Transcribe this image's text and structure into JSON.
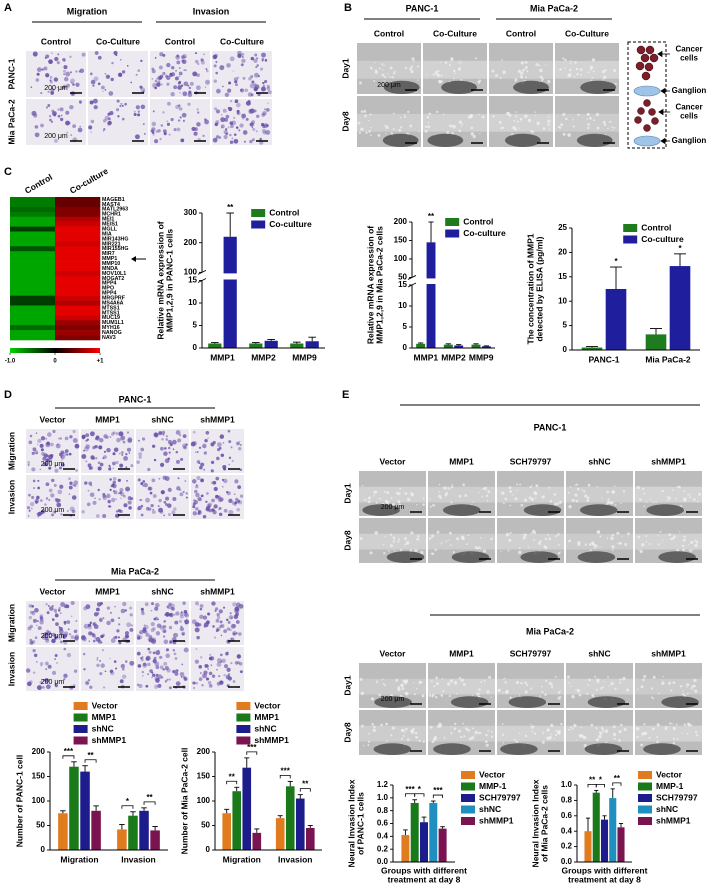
{
  "panels": {
    "A": {
      "label": "A",
      "groups": [
        "Migration",
        "Invasion"
      ],
      "columns": [
        "Control",
        "Co-Culture",
        "Control",
        "Co-Culture"
      ],
      "rows": [
        "PANC-1",
        "Mia PaCa-2"
      ],
      "scale_bars": [
        "200 μm",
        "200 μm"
      ]
    },
    "B": {
      "label": "B",
      "groups": [
        "PANC-1",
        "Mia PaCa-2"
      ],
      "columns": [
        "Control",
        "Co-Culture",
        "Control",
        "Co-Culture"
      ],
      "rows": [
        "Day1",
        "Day8"
      ],
      "scale_bars": [
        "200 μm"
      ],
      "schematic": [
        "Cancer cells",
        "Ganglion",
        "Cancer cells",
        "Ganglion"
      ]
    },
    "C": {
      "label": "C"
    },
    "D": {
      "label": "D",
      "blocks": [
        {
          "title": "PANC-1",
          "columns": [
            "Vector",
            "MMP1",
            "shNC",
            "shMMP1"
          ],
          "rows": [
            "Migration",
            "Invasion"
          ],
          "scale_bars": [
            "200 μm",
            "200 μm"
          ]
        },
        {
          "title": "Mia PaCa-2",
          "columns": [
            "Vector",
            "MMP1",
            "shNC",
            "shMMP1"
          ],
          "rows": [
            "Migration",
            "Invasion"
          ],
          "scale_bars": [
            "200 μm",
            "200 μm"
          ]
        }
      ]
    },
    "E": {
      "label": "E",
      "blocks": [
        {
          "title": "PANC-1",
          "columns": [
            "Vector",
            "MMP1",
            "SCH79797",
            "shNC",
            "shMMP1"
          ],
          "rows": [
            "Day1",
            "Day8"
          ],
          "scale_bars": [
            "200 μm"
          ]
        },
        {
          "title": "Mia PaCa-2",
          "columns": [
            "Vector",
            "MMP1",
            "SCH79797",
            "shNC",
            "shMMP1"
          ],
          "rows": [
            "Day1",
            "Day8"
          ],
          "scale_bars": [
            "200 μm"
          ]
        }
      ]
    }
  },
  "chart_data": [
    {
      "type": "heatmap",
      "columns": [
        "Control",
        "Co-culture"
      ],
      "rows": [
        "MAGEB1",
        "MAST4",
        "MATL2963",
        "MCHR1",
        "MEI1",
        "MEIS1",
        "MGLL",
        "MIA",
        "MIR143HG",
        "MIR221",
        "MIR155HG",
        "MIR7",
        "MMP1",
        "MMP10",
        "MNDA",
        "MOV10L1",
        "MOGAT2",
        "MPP4",
        "MPO",
        "MPP4",
        "MRGPRF",
        "MS4A6A",
        "MTSS1",
        "MTSS1",
        "MUC19",
        "MUM1L1",
        "MYH16",
        "NANOG",
        "NAV3"
      ],
      "values": [
        [
          -0.6,
          0.4
        ],
        [
          -0.6,
          0.4
        ],
        [
          -0.5,
          0.5
        ],
        [
          -0.6,
          0.5
        ],
        [
          -0.8,
          0.7
        ],
        [
          -0.8,
          0.8
        ],
        [
          -0.3,
          0.9
        ],
        [
          -0.8,
          0.9
        ],
        [
          -0.8,
          0.9
        ],
        [
          -0.8,
          0.8
        ],
        [
          -0.4,
          0.9
        ],
        [
          -0.8,
          0.9
        ],
        [
          -0.8,
          0.9
        ],
        [
          -0.8,
          0.9
        ],
        [
          -0.8,
          0.9
        ],
        [
          -0.8,
          0.8
        ],
        [
          -0.8,
          0.9
        ],
        [
          -0.8,
          0.9
        ],
        [
          -0.8,
          0.9
        ],
        [
          -0.8,
          0.9
        ],
        [
          -0.3,
          0.8
        ],
        [
          -0.3,
          0.7
        ],
        [
          -0.8,
          0.9
        ],
        [
          -0.8,
          0.9
        ],
        [
          -0.8,
          0.8
        ],
        [
          -0.8,
          0.6
        ],
        [
          -0.5,
          0.5
        ],
        [
          -0.8,
          0.6
        ],
        [
          -0.8,
          0.5
        ]
      ],
      "clim": [
        -1,
        1
      ],
      "cticks": [
        {
          "value": -1,
          "label": "-1.0"
        },
        0,
        {
          "value": 1,
          "label": "+1"
        }
      ],
      "colors": [
        "#00d000",
        "#000000",
        "#ff0000"
      ]
    },
    {
      "type": "bar",
      "ylabel": "Relative mRNA expression of MMP1,2,9 in PANC-1 cells",
      "categories": [
        "MMP1",
        "MMP2",
        "MMP9"
      ],
      "series": [
        {
          "name": "Control",
          "color": "#1e7b1e",
          "values": [
            1,
            1,
            1
          ],
          "errors": [
            0.2,
            0.2,
            0.3
          ]
        },
        {
          "name": "Co-culture",
          "color": "#1f1f9e",
          "values": [
            220,
            1.6,
            1.5
          ],
          "errors": [
            80,
            0.3,
            0.9
          ],
          "significance": [
            "**",
            null,
            null
          ]
        }
      ],
      "ylim": [
        0,
        300
      ],
      "axis_break": [
        15,
        100
      ],
      "yticks": [
        0,
        5,
        10,
        15,
        100,
        200,
        300
      ],
      "legend": "inside-top"
    },
    {
      "type": "bar",
      "ylabel": "Relative mRNA expression of MMP1,2,9 in Mia PaCa-2 cells",
      "categories": [
        "MMP1",
        "MMP2",
        "MMP9"
      ],
      "series": [
        {
          "name": "Control",
          "color": "#1e7b1e",
          "values": [
            1,
            0.8,
            0.8
          ],
          "errors": [
            0.2,
            0.2,
            0.2
          ]
        },
        {
          "name": "Co-culture",
          "color": "#1f1f9e",
          "values": [
            145,
            0.6,
            0.4
          ],
          "errors": [
            55,
            0.2,
            0.1
          ],
          "significance": [
            "**",
            null,
            null
          ]
        }
      ],
      "ylim": [
        0,
        200
      ],
      "axis_break": [
        15,
        50
      ],
      "yticks": [
        0,
        5,
        10,
        15,
        50,
        100,
        150,
        200
      ],
      "legend": "inside-top"
    },
    {
      "type": "bar",
      "ylabel": "The concentration of MMP1 detected by ELISA (pg/ml)",
      "categories": [
        "PANC-1",
        "Mia PaCa-2"
      ],
      "series": [
        {
          "name": "Control",
          "color": "#1e7b1e",
          "values": [
            0.5,
            3.2
          ],
          "errors": [
            0.2,
            1.2
          ]
        },
        {
          "name": "Co-culture",
          "color": "#1f1f9e",
          "values": [
            12.5,
            17.2
          ],
          "errors": [
            4.5,
            2.5
          ],
          "significance": [
            "*",
            "*"
          ]
        }
      ],
      "ylim": [
        0,
        25
      ],
      "yticks": [
        0,
        5,
        10,
        15,
        20,
        25
      ],
      "legend": "inside-top"
    },
    {
      "type": "bar",
      "ylabel": "Number of PANC-1 cell",
      "categories": [
        "Migration",
        "Invasion"
      ],
      "series": [
        {
          "name": "Vector",
          "color": "#e07b20",
          "values": [
            75,
            42
          ],
          "errors": [
            5,
            10
          ]
        },
        {
          "name": "MMP1",
          "color": "#1a7a1a",
          "values": [
            170,
            70
          ],
          "errors": [
            10,
            8
          ]
        },
        {
          "name": "shNC",
          "color": "#1c1c8c",
          "values": [
            160,
            80
          ],
          "errors": [
            12,
            6
          ]
        },
        {
          "name": "shMMP1",
          "color": "#7a1450",
          "values": [
            80,
            40
          ],
          "errors": [
            10,
            8
          ]
        }
      ],
      "comparisons": [
        {
          "label": "***",
          "category": "Migration",
          "between": [
            "Vector",
            "MMP1"
          ]
        },
        {
          "label": "**",
          "category": "Migration",
          "between": [
            "shNC",
            "shMMP1"
          ]
        },
        {
          "label": "*",
          "category": "Invasion",
          "between": [
            "Vector",
            "MMP1"
          ]
        },
        {
          "label": "**",
          "category": "Invasion",
          "between": [
            "shNC",
            "shMMP1"
          ]
        }
      ],
      "ylim": [
        0,
        200
      ],
      "yticks": [
        0,
        50,
        100,
        150,
        200
      ],
      "legend": "above"
    },
    {
      "type": "bar",
      "ylabel": "Number of Mia PaCa-2 cell",
      "categories": [
        "Migration",
        "Invasion"
      ],
      "series": [
        {
          "name": "Vector",
          "color": "#e07b20",
          "values": [
            75,
            65
          ],
          "errors": [
            8,
            5
          ]
        },
        {
          "name": "MMP1",
          "color": "#1a7a1a",
          "values": [
            120,
            130
          ],
          "errors": [
            8,
            10
          ]
        },
        {
          "name": "shNC",
          "color": "#1c1c8c",
          "values": [
            168,
            105
          ],
          "errors": [
            20,
            8
          ]
        },
        {
          "name": "shMMP1",
          "color": "#7a1450",
          "values": [
            35,
            45
          ],
          "errors": [
            8,
            5
          ]
        }
      ],
      "comparisons": [
        {
          "label": "**",
          "category": "Migration",
          "between": [
            "Vector",
            "MMP1"
          ]
        },
        {
          "label": "***",
          "category": "Migration",
          "between": [
            "shNC",
            "shMMP1"
          ]
        },
        {
          "label": "***",
          "category": "Invasion",
          "between": [
            "Vector",
            "MMP1"
          ]
        },
        {
          "label": "**",
          "category": "Invasion",
          "between": [
            "shNC",
            "shMMP1"
          ]
        }
      ],
      "ylim": [
        0,
        200
      ],
      "yticks": [
        0,
        50,
        100,
        150,
        200
      ],
      "legend": "above"
    },
    {
      "type": "bar",
      "ylabel": "Neural Invasion Index of PANC-1 cells",
      "xlabel": "Groups with different treatment at day 8",
      "categories": [
        null
      ],
      "series": [
        {
          "name": "Vector",
          "color": "#e07b20",
          "values": [
            0.42
          ],
          "errors": [
            0.08
          ]
        },
        {
          "name": "MMP-1",
          "color": "#1a7a1a",
          "values": [
            0.92
          ],
          "errors": [
            0.05
          ]
        },
        {
          "name": "SCH79797",
          "color": "#1c1c8c",
          "values": [
            0.62
          ],
          "errors": [
            0.08
          ]
        },
        {
          "name": "shNC",
          "color": "#1f8fc0",
          "values": [
            0.92
          ],
          "errors": [
            0.03
          ]
        },
        {
          "name": "shMMP1",
          "color": "#7a1450",
          "values": [
            0.52
          ],
          "errors": [
            0.03
          ]
        }
      ],
      "comparisons": [
        {
          "label": "***",
          "between": [
            "Vector",
            "MMP-1"
          ]
        },
        {
          "label": "*",
          "between": [
            "MMP-1",
            "SCH79797"
          ]
        },
        {
          "label": "***",
          "between": [
            "shNC",
            "shMMP1"
          ]
        }
      ],
      "ylim": [
        0,
        1.2
      ],
      "yticks": [
        {
          "value": 0,
          "label": "0.0"
        },
        0.2,
        0.4,
        0.6,
        0.8,
        {
          "value": 1,
          "label": "1.0"
        },
        1.2
      ],
      "legend": "right"
    },
    {
      "type": "bar",
      "ylabel": "Neural Invasion Index of Mia PaCa-2 cells",
      "xlabel": "Groups with different treatment at day 8",
      "categories": [
        null
      ],
      "series": [
        {
          "name": "Vector",
          "color": "#e07b20",
          "values": [
            0.4
          ],
          "errors": [
            0.17
          ]
        },
        {
          "name": "MMP-1",
          "color": "#1a7a1a",
          "values": [
            0.9
          ],
          "errors": [
            0.03
          ]
        },
        {
          "name": "SCH79797",
          "color": "#1c1c8c",
          "values": [
            0.55
          ],
          "errors": [
            0.05
          ]
        },
        {
          "name": "shNC",
          "color": "#1f8fc0",
          "values": [
            0.83
          ],
          "errors": [
            0.12
          ]
        },
        {
          "name": "shMMP1",
          "color": "#7a1450",
          "values": [
            0.45
          ],
          "errors": [
            0.05
          ]
        }
      ],
      "comparisons": [
        {
          "label": "**",
          "between": [
            "Vector",
            "MMP-1"
          ]
        },
        {
          "label": "*",
          "between": [
            "MMP-1",
            "SCH79797"
          ]
        },
        {
          "label": "**",
          "between": [
            "shNC",
            "shMMP1"
          ]
        }
      ],
      "ylim": [
        0,
        1
      ],
      "yticks": [
        {
          "value": 0,
          "label": "0.0"
        },
        0.2,
        0.4,
        0.6,
        0.8,
        {
          "value": 1,
          "label": "1.0"
        }
      ],
      "legend": "right"
    }
  ]
}
